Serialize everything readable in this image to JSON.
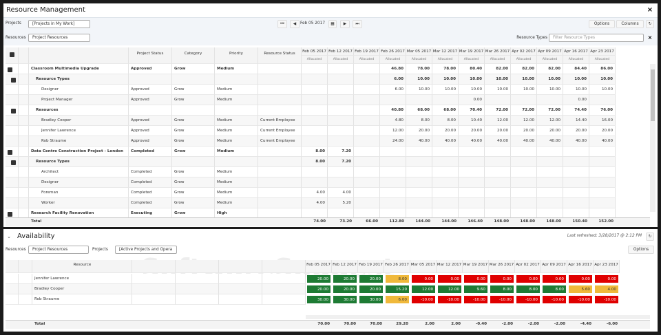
{
  "top": {
    "title": "Resource Management",
    "close": "×",
    "projects_label": "Projects",
    "projects_value": "[Projects in My Work]",
    "date": "Feb 05 2017",
    "options": "Options",
    "columns": "Columns",
    "resources_label": "Resources",
    "resources_value": "Project Resources",
    "resource_types_label": "Resource Types",
    "resource_types_placeholder": "Filter Resource Types",
    "headers": [
      "Project Status",
      "Category",
      "Priority",
      "Resource Status"
    ],
    "dates": [
      "Feb 05 2017",
      "Feb 12 2017",
      "Feb 19 2017",
      "Feb 26 2017",
      "Mar 05 2017",
      "Mar 12 2017",
      "Mar 19 2017",
      "Mar 26 2017",
      "Apr 02 2017",
      "Apr 09 2017",
      "Apr 16 2017",
      "Apr 23 2017"
    ],
    "subheader": "Allocated",
    "rows": [
      {
        "name": "Classroom Multimedia Upgrade",
        "level": 0,
        "bold": true,
        "cells": [
          "Approved",
          "Grow",
          "Medium",
          null
        ],
        "values": [
          null,
          null,
          null,
          "46.80",
          "78.00",
          "78.00",
          "80.40",
          "82.00",
          "82.00",
          "82.00",
          "84.40",
          "86.00"
        ]
      },
      {
        "name": "Resource Types",
        "level": 1,
        "bold": true,
        "cells": [
          null,
          null,
          null,
          null
        ],
        "values": [
          null,
          null,
          null,
          "6.00",
          "10.00",
          "10.00",
          "10.00",
          "10.00",
          "10.00",
          "10.00",
          "10.00",
          "10.00"
        ]
      },
      {
        "name": "Designer",
        "level": 2,
        "bold": false,
        "cells": [
          "Approved",
          "Grow",
          "Medium",
          null
        ],
        "values": [
          null,
          null,
          null,
          "6.00",
          "10.00",
          "10.00",
          "10.00",
          "10.00",
          "10.00",
          "10.00",
          "10.00",
          "10.00"
        ]
      },
      {
        "name": "Project Manager",
        "level": 2,
        "bold": false,
        "cells": [
          "Approved",
          "Grow",
          "Medium",
          null
        ],
        "values": [
          null,
          null,
          null,
          null,
          null,
          null,
          "0.00",
          null,
          null,
          null,
          "0.00",
          null
        ]
      },
      {
        "name": "Resources",
        "level": 1,
        "bold": true,
        "cells": [
          null,
          null,
          null,
          null
        ],
        "values": [
          null,
          null,
          null,
          "40.80",
          "68.00",
          "68.00",
          "70.40",
          "72.00",
          "72.00",
          "72.00",
          "74.40",
          "76.00"
        ]
      },
      {
        "name": "Bradley Cooper",
        "level": 2,
        "bold": false,
        "cells": [
          "Approved",
          "Grow",
          "Medium",
          "Current Employee"
        ],
        "values": [
          null,
          null,
          null,
          "4.80",
          "8.00",
          "8.00",
          "10.40",
          "12.00",
          "12.00",
          "12.00",
          "14.40",
          "16.00"
        ]
      },
      {
        "name": "Jennifer Lawrence",
        "level": 2,
        "bold": false,
        "cells": [
          "Approved",
          "Grow",
          "Medium",
          "Current Employee"
        ],
        "values": [
          null,
          null,
          null,
          "12.00",
          "20.00",
          "20.00",
          "20.00",
          "20.00",
          "20.00",
          "20.00",
          "20.00",
          "20.00"
        ]
      },
      {
        "name": "Rob Straume",
        "level": 2,
        "bold": false,
        "cells": [
          "Approved",
          "Grow",
          "Medium",
          "Current Employee"
        ],
        "values": [
          null,
          null,
          null,
          "24.00",
          "40.00",
          "40.00",
          "40.00",
          "40.00",
          "40.00",
          "40.00",
          "40.00",
          "40.00"
        ]
      },
      {
        "name": "Data Centre Construction Project - London",
        "level": 0,
        "bold": true,
        "cells": [
          "Completed",
          "Grow",
          "Medium",
          null
        ],
        "values": [
          "8.00",
          "7.20",
          null,
          null,
          null,
          null,
          null,
          null,
          null,
          null,
          null,
          null
        ]
      },
      {
        "name": "Resource Types",
        "level": 1,
        "bold": true,
        "cells": [
          null,
          null,
          null,
          null
        ],
        "values": [
          "8.00",
          "7.20",
          null,
          null,
          null,
          null,
          null,
          null,
          null,
          null,
          null,
          null
        ]
      },
      {
        "name": "Architect",
        "level": 2,
        "bold": false,
        "cells": [
          "Completed",
          "Grow",
          "Medium",
          null
        ],
        "values": [
          null,
          null,
          null,
          null,
          null,
          null,
          null,
          null,
          null,
          null,
          null,
          null
        ]
      },
      {
        "name": "Designer",
        "level": 2,
        "bold": false,
        "cells": [
          "Completed",
          "Grow",
          "Medium",
          null
        ],
        "values": [
          null,
          null,
          null,
          null,
          null,
          null,
          null,
          null,
          null,
          null,
          null,
          null
        ]
      },
      {
        "name": "Foreman",
        "level": 2,
        "bold": false,
        "cells": [
          "Completed",
          "Grow",
          "Medium",
          null
        ],
        "values": [
          "4.00",
          "4.00",
          null,
          null,
          null,
          null,
          null,
          null,
          null,
          null,
          null,
          null
        ]
      },
      {
        "name": "Worker",
        "level": 2,
        "bold": false,
        "cells": [
          "Completed",
          "Grow",
          "Medium",
          null
        ],
        "values": [
          "4.00",
          "5.20",
          null,
          null,
          null,
          null,
          null,
          null,
          null,
          null,
          null,
          null
        ]
      },
      {
        "name": "Research Facility Renovation",
        "level": 0,
        "bold": true,
        "cells": [
          "Executing",
          "Grow",
          "High",
          null
        ],
        "values": [
          null,
          null,
          null,
          null,
          null,
          null,
          null,
          null,
          null,
          null,
          null,
          null
        ]
      }
    ],
    "total_label": "Total",
    "totals": [
      "74.00",
      "73.20",
      "66.00",
      "112.80",
      "144.00",
      "144.00",
      "146.40",
      "148.00",
      "148.00",
      "148.00",
      "150.40",
      "152.00"
    ]
  },
  "bottom": {
    "title": "Availability",
    "refreshed": "Last refreshed: 3/28/2017 @ 2:12 PM",
    "options": "Options",
    "resources_label": "Resources",
    "resources_value": "Project Resources",
    "projects_label": "Projects",
    "projects_value": "[Active Projects and Opera",
    "resource_header": "Resource",
    "watermark": "SoftwareSuggest",
    "rows": [
      {
        "name": "Jennifer Lawrence",
        "values": [
          "20.00",
          "20.00",
          "20.00",
          "8.00",
          "0.00",
          "0.00",
          "0.00",
          "0.00",
          "0.00",
          "0.00",
          "0.00",
          "0.00"
        ],
        "colors": [
          "#1e7b34",
          "#1e7b34",
          "#1e7b34",
          "#f0b93b",
          "#e00000",
          "#e00000",
          "#e00000",
          "#e00000",
          "#e00000",
          "#e00000",
          "#e00000",
          "#e00000"
        ]
      },
      {
        "name": "Bradley Cooper",
        "values": [
          "20.00",
          "20.00",
          "20.00",
          "15.20",
          "12.00",
          "12.00",
          "9.60",
          "8.00",
          "8.00",
          "8.00",
          "5.60",
          "4.00"
        ],
        "colors": [
          "#1e7b34",
          "#1e7b34",
          "#1e7b34",
          "#1e7b34",
          "#1e7b34",
          "#1e7b34",
          "#1e7b34",
          "#1e7b34",
          "#1e7b34",
          "#1e7b34",
          "#f0b93b",
          "#f0b93b"
        ]
      },
      {
        "name": "Rob Straume",
        "values": [
          "30.00",
          "30.00",
          "30.00",
          "6.00",
          "-10.00",
          "-10.00",
          "-10.00",
          "-10.00",
          "-10.00",
          "-10.00",
          "-10.00",
          "-10.00"
        ],
        "colors": [
          "#1e7b34",
          "#1e7b34",
          "#1e7b34",
          "#f0b93b",
          "#e00000",
          "#e00000",
          "#e00000",
          "#e00000",
          "#e00000",
          "#e00000",
          "#e00000",
          "#e00000"
        ]
      }
    ],
    "total_label": "Total",
    "totals": [
      "70.00",
      "70.00",
      "70.00",
      "29.20",
      "2.00",
      "2.00",
      "-0.40",
      "-2.00",
      "-2.00",
      "-2.00",
      "-4.40",
      "-6.00"
    ]
  }
}
